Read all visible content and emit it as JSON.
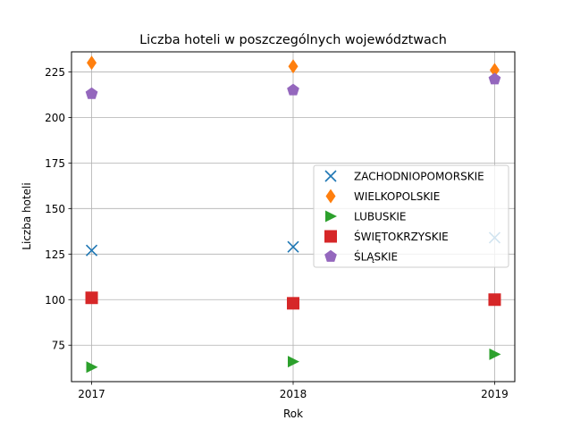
{
  "chart_data": {
    "type": "scatter",
    "title": "Liczba hoteli w poszczególnych województwach",
    "xlabel": "Rok",
    "ylabel": "Liczba hoteli",
    "x": [
      2017,
      2018,
      2019
    ],
    "xlim": [
      2016.9,
      2019.1
    ],
    "ylim": [
      55,
      236
    ],
    "yticks": [
      75,
      100,
      125,
      150,
      175,
      200,
      225
    ],
    "grid": true,
    "legend_position": "center-right",
    "series": [
      {
        "name": "ZACHODNIOPOMORSKIE",
        "values": [
          127,
          129,
          134
        ],
        "marker": "x",
        "color": "#1f77b4"
      },
      {
        "name": "WIELKOPOLSKIE",
        "values": [
          230,
          228,
          226
        ],
        "marker": "thin-diamond",
        "color": "#ff7f0e"
      },
      {
        "name": "LUBUSKIE",
        "values": [
          63,
          66,
          70
        ],
        "marker": "triangle-right",
        "color": "#2ca02c"
      },
      {
        "name": "ŚWIĘTOKRZYSKIE",
        "values": [
          101,
          98,
          100
        ],
        "marker": "square",
        "color": "#d62728"
      },
      {
        "name": "ŚLĄSKIE",
        "values": [
          213,
          215,
          221
        ],
        "marker": "pentagon",
        "color": "#9467bd"
      }
    ]
  }
}
